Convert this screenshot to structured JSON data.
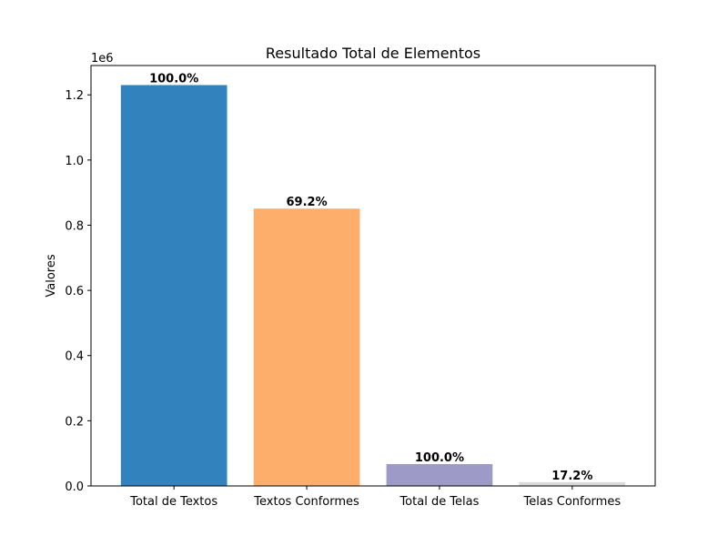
{
  "chart_data": {
    "type": "bar",
    "title": "Resultado Total de Elementos",
    "xlabel": "",
    "ylabel": "Valores",
    "y_offset_label": "1e6",
    "ylim": [
      0,
      1.29
    ],
    "yticks": [
      "0.0",
      "0.2",
      "0.4",
      "0.6",
      "0.8",
      "1.0",
      "1.2"
    ],
    "y_tick_values": [
      0.0,
      0.2,
      0.4,
      0.6,
      0.8,
      1.0,
      1.2
    ],
    "categories": [
      "Total de Textos",
      "Textos Conformes",
      "Total de Telas",
      "Telas Conformes"
    ],
    "values": [
      1.23,
      0.851,
      0.067,
      0.0115
    ],
    "data_labels": [
      "100.0%",
      "69.2%",
      "100.0%",
      "17.2%"
    ],
    "colors": [
      "#3182bd",
      "#fdae6b",
      "#9e9ac8",
      "#d9d9d9"
    ],
    "grid": false,
    "legend": "none"
  }
}
